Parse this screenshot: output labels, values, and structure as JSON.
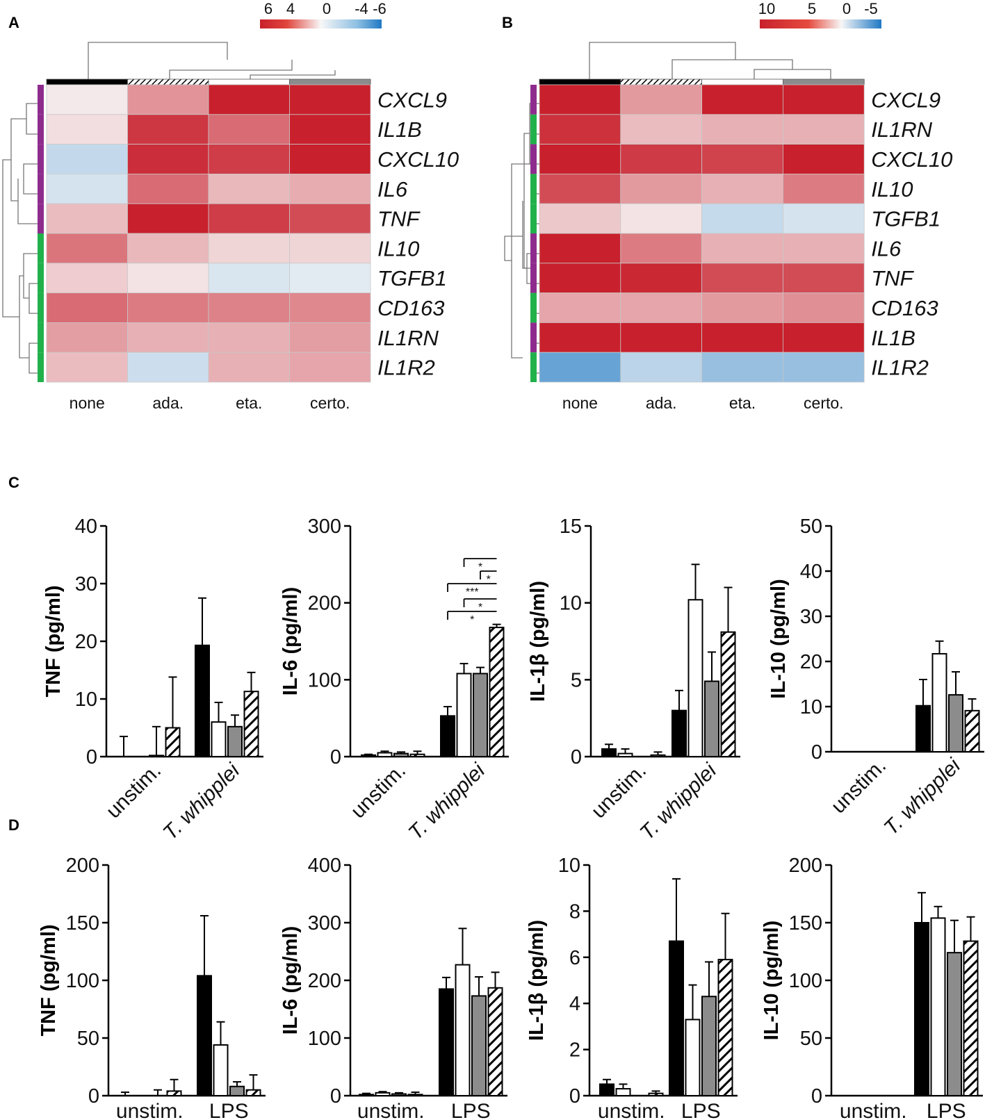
{
  "panel_labels": {
    "a": "A",
    "b": "B",
    "c": "C",
    "d": "D"
  },
  "heatmap_columns": [
    "none",
    "ada.",
    "eta.",
    "certo."
  ],
  "colors": {
    "pos": "#c8202c",
    "neg": "#1f78c4",
    "zero": "#f7f7f7",
    "proinflammatory": "#8e2c8e",
    "antiinflammatory": "#21b14b",
    "gray_bar": "#8c8c8c"
  },
  "chart_data": [
    {
      "type": "heatmap",
      "panel": "A",
      "scale_labels": [
        "6",
        "4",
        "0",
        "-4",
        "-6"
      ],
      "scale_range": [
        -6,
        6
      ],
      "columns": [
        "none",
        "ada.",
        "eta.",
        "certo."
      ],
      "rows": [
        "CXCL9",
        "IL1B",
        "CXCL10",
        "IL6",
        "TNF",
        "IL10",
        "TGFB1",
        "CD163",
        "IL1RN",
        "IL1R2"
      ],
      "groups": [
        "pro",
        "pro",
        "pro",
        "pro",
        "pro",
        "anti",
        "anti",
        "anti",
        "anti",
        "anti"
      ],
      "values": [
        [
          0.2,
          2.3,
          7.0,
          7.0
        ],
        [
          0.4,
          5.2,
          3.5,
          7.0
        ],
        [
          -1.0,
          5.5,
          5.0,
          7.0
        ],
        [
          -0.6,
          3.5,
          1.3,
          1.6
        ],
        [
          1.2,
          6.5,
          5.0,
          4.5
        ],
        [
          3.2,
          1.3,
          0.6,
          0.6
        ],
        [
          0.8,
          0.3,
          -0.5,
          -0.3
        ],
        [
          3.5,
          3.0,
          2.8,
          2.6
        ],
        [
          2.0,
          1.5,
          1.5,
          2.0
        ],
        [
          1.2,
          -0.8,
          1.5,
          1.8
        ]
      ]
    },
    {
      "type": "heatmap",
      "panel": "B",
      "scale_labels": [
        "10",
        "5",
        "0",
        "-5"
      ],
      "scale_range": [
        -5,
        10
      ],
      "columns": [
        "none",
        "ada.",
        "eta.",
        "certo."
      ],
      "rows": [
        "CXCL9",
        "IL1RN",
        "CXCL10",
        "IL10",
        "TGFB1",
        "IL6",
        "TNF",
        "CD163",
        "IL1B",
        "IL1R2"
      ],
      "groups": [
        "pro",
        "anti",
        "pro",
        "anti",
        "anti",
        "pro",
        "pro",
        "anti",
        "pro",
        "anti"
      ],
      "values": [
        [
          10.0,
          3.5,
          10.0,
          10.0
        ],
        [
          9.0,
          2.0,
          2.5,
          2.5
        ],
        [
          10.0,
          8.5,
          8.0,
          10.0
        ],
        [
          7.5,
          3.5,
          2.5,
          5.0
        ],
        [
          1.5,
          0.5,
          -0.8,
          -0.5
        ],
        [
          10.0,
          5.0,
          2.5,
          2.5
        ],
        [
          10.0,
          9.5,
          7.5,
          7.5
        ],
        [
          3.0,
          3.0,
          3.5,
          4.0
        ],
        [
          10.0,
          10.0,
          10.0,
          10.0
        ],
        [
          -3.0,
          -1.0,
          -1.8,
          -1.8
        ]
      ]
    },
    {
      "type": "bar",
      "panel": "C",
      "ylabel": "TNF (pg/ml)",
      "ylim": [
        0,
        40
      ],
      "yticks": [
        "0",
        "10",
        "20",
        "30",
        "40"
      ],
      "categories": [
        "unstim.",
        "T. whipplei"
      ],
      "series": [
        {
          "style": "black",
          "values": [
            0.0,
            19.3
          ],
          "errors": [
            3.5,
            8.2
          ]
        },
        {
          "style": "white",
          "values": [
            0.0,
            6.0
          ],
          "errors": [
            0.0,
            3.4
          ]
        },
        {
          "style": "gray",
          "values": [
            0.2,
            5.2
          ],
          "errors": [
            5.0,
            2.0
          ]
        },
        {
          "style": "hatched",
          "values": [
            5.0,
            11.3
          ],
          "errors": [
            8.8,
            3.3
          ]
        }
      ]
    },
    {
      "type": "bar",
      "panel": "C",
      "ylabel": "IL-6 (pg/ml)",
      "ylim": [
        0,
        300
      ],
      "yticks": [
        "0",
        "100",
        "200",
        "300"
      ],
      "categories": [
        "unstim.",
        "T. whipplei"
      ],
      "series": [
        {
          "style": "black",
          "values": [
            2,
            53
          ],
          "errors": [
            1,
            12
          ]
        },
        {
          "style": "white",
          "values": [
            5,
            108
          ],
          "errors": [
            2,
            13
          ]
        },
        {
          "style": "gray",
          "values": [
            4,
            108
          ],
          "errors": [
            2,
            8
          ]
        },
        {
          "style": "hatched",
          "values": [
            3,
            168
          ],
          "errors": [
            4,
            4
          ]
        }
      ],
      "significance": [
        "*",
        "*",
        "***",
        "*",
        "*"
      ]
    },
    {
      "type": "bar",
      "panel": "C",
      "ylabel": "IL-1β (pg/ml)",
      "ylim": [
        0,
        15
      ],
      "yticks": [
        "0",
        "5",
        "10",
        "15"
      ],
      "categories": [
        "unstim.",
        "T. whipplei"
      ],
      "series": [
        {
          "style": "black",
          "values": [
            0.5,
            3.0
          ],
          "errors": [
            0.3,
            1.3
          ]
        },
        {
          "style": "white",
          "values": [
            0.2,
            10.2
          ],
          "errors": [
            0.3,
            2.3
          ]
        },
        {
          "style": "gray",
          "values": [
            0.0,
            4.9
          ],
          "errors": [
            0.0,
            1.9
          ]
        },
        {
          "style": "hatched",
          "values": [
            0.1,
            8.1
          ],
          "errors": [
            0.2,
            2.9
          ]
        }
      ]
    },
    {
      "type": "bar",
      "panel": "C",
      "ylabel": "IL-10 (pg/ml)",
      "ylim": [
        0,
        50
      ],
      "yticks": [
        "0",
        "10",
        "20",
        "30",
        "40",
        "50"
      ],
      "categories": [
        "unstim.",
        "T. whipplei"
      ],
      "series": [
        {
          "style": "black",
          "values": [
            0.0,
            10.2
          ],
          "errors": [
            0.0,
            5.8
          ]
        },
        {
          "style": "white",
          "values": [
            0.0,
            21.7
          ],
          "errors": [
            0.0,
            2.8
          ]
        },
        {
          "style": "gray",
          "values": [
            0.0,
            12.6
          ],
          "errors": [
            0.0,
            5.1
          ]
        },
        {
          "style": "hatched",
          "values": [
            0.0,
            9.1
          ],
          "errors": [
            0.0,
            2.6
          ]
        }
      ]
    },
    {
      "type": "bar",
      "panel": "D",
      "ylabel": "TNF (pg/ml)",
      "ylim": [
        0,
        200
      ],
      "yticks": [
        "0",
        "50",
        "100",
        "150",
        "200"
      ],
      "categories": [
        "unstim.",
        "LPS"
      ],
      "series": [
        {
          "style": "black",
          "values": [
            0,
            104
          ],
          "errors": [
            3,
            52
          ]
        },
        {
          "style": "white",
          "values": [
            0,
            44
          ],
          "errors": [
            0,
            20
          ]
        },
        {
          "style": "gray",
          "values": [
            0,
            8
          ],
          "errors": [
            5,
            4
          ]
        },
        {
          "style": "hatched",
          "values": [
            4,
            5
          ],
          "errors": [
            10,
            13
          ]
        }
      ]
    },
    {
      "type": "bar",
      "panel": "D",
      "ylabel": "IL-6 (pg/ml)",
      "ylim": [
        0,
        400
      ],
      "yticks": [
        "0",
        "100",
        "200",
        "300",
        "400"
      ],
      "categories": [
        "unstim.",
        "LPS"
      ],
      "series": [
        {
          "style": "black",
          "values": [
            2,
            185
          ],
          "errors": [
            2,
            20
          ]
        },
        {
          "style": "white",
          "values": [
            5,
            227
          ],
          "errors": [
            2,
            63
          ]
        },
        {
          "style": "gray",
          "values": [
            3,
            173
          ],
          "errors": [
            2,
            33
          ]
        },
        {
          "style": "hatched",
          "values": [
            2,
            187
          ],
          "errors": [
            4,
            27
          ]
        }
      ]
    },
    {
      "type": "bar",
      "panel": "D",
      "ylabel": "IL-1β (pg/ml)",
      "ylim": [
        0,
        10
      ],
      "yticks": [
        "0",
        "2",
        "4",
        "6",
        "8",
        "10"
      ],
      "categories": [
        "unstim.",
        "LPS"
      ],
      "series": [
        {
          "style": "black",
          "values": [
            0.5,
            6.7
          ],
          "errors": [
            0.2,
            2.7
          ]
        },
        {
          "style": "white",
          "values": [
            0.3,
            3.3
          ],
          "errors": [
            0.2,
            1.5
          ]
        },
        {
          "style": "gray",
          "values": [
            0.0,
            4.3
          ],
          "errors": [
            0.0,
            1.5
          ]
        },
        {
          "style": "hatched",
          "values": [
            0.1,
            5.9
          ],
          "errors": [
            0.1,
            2.0
          ]
        }
      ]
    },
    {
      "type": "bar",
      "panel": "D",
      "ylabel": "IL-10 (pg/ml)",
      "ylim": [
        0,
        200
      ],
      "yticks": [
        "0",
        "50",
        "100",
        "150",
        "200"
      ],
      "categories": [
        "unstim.",
        "LPS"
      ],
      "series": [
        {
          "style": "black",
          "values": [
            0,
            150
          ],
          "errors": [
            0,
            26
          ]
        },
        {
          "style": "white",
          "values": [
            0,
            154
          ],
          "errors": [
            0,
            10
          ]
        },
        {
          "style": "gray",
          "values": [
            0,
            124
          ],
          "errors": [
            0,
            28
          ]
        },
        {
          "style": "hatched",
          "values": [
            0,
            134
          ],
          "errors": [
            0,
            21
          ]
        }
      ]
    }
  ]
}
